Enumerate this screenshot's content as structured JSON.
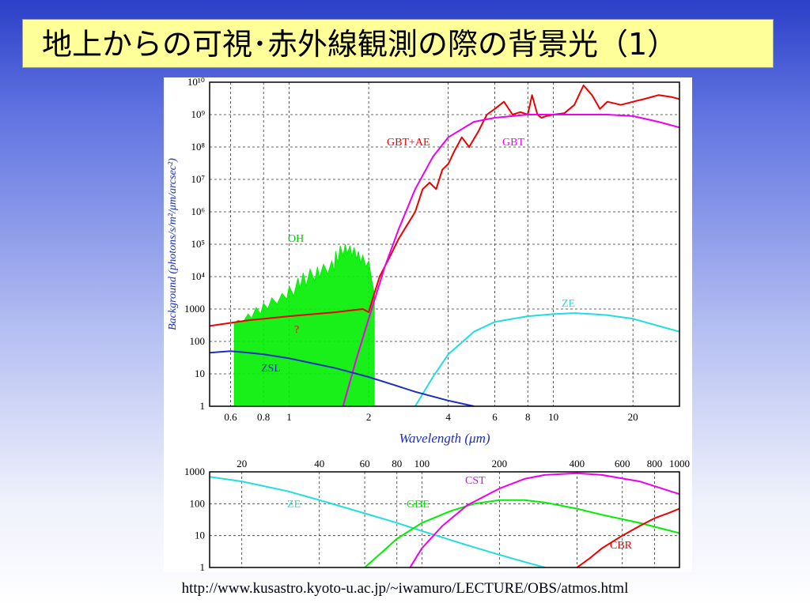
{
  "slide": {
    "title": "地上からの可視･赤外線観測の際の背景光（1）",
    "source_url": "http://www.kusastro.kyoto-u.ac.jp/~iwamuro/LECTURE/OBS/atmos.html"
  },
  "chart_data": [
    {
      "type": "line",
      "title": "",
      "xlabel": "Wavelength (μm)",
      "ylabel": "Background (photons/s/m²/μm/arcsec²)",
      "x_scale": "log",
      "y_scale": "log",
      "xlim": [
        0.5,
        30
      ],
      "ylim": [
        1,
        10000000000
      ],
      "grid": true,
      "x_ticks": [
        {
          "value": 0.6,
          "label": "0.6"
        },
        {
          "value": 0.8,
          "label": "0.8"
        },
        {
          "value": 1,
          "label": "1"
        },
        {
          "value": 2,
          "label": "2"
        },
        {
          "value": 4,
          "label": "4"
        },
        {
          "value": 6,
          "label": "6"
        },
        {
          "value": 8,
          "label": "8"
        },
        {
          "value": 10,
          "label": "10"
        },
        {
          "value": 20,
          "label": "20"
        }
      ],
      "y_ticks": [
        {
          "value": 1,
          "label": "1"
        },
        {
          "value": 10,
          "label": "10"
        },
        {
          "value": 100,
          "label": "100"
        },
        {
          "value": 1000,
          "label": "1000"
        },
        {
          "value": 10000,
          "label": "10⁴"
        },
        {
          "value": 100000,
          "label": "10⁵"
        },
        {
          "value": 1000000,
          "label": "10⁶"
        },
        {
          "value": 10000000,
          "label": "10⁷"
        },
        {
          "value": 100000000,
          "label": "10⁸"
        },
        {
          "value": 1000000000,
          "label": "10⁹"
        },
        {
          "value": 10000000000,
          "label": "10¹⁰"
        }
      ],
      "series": [
        {
          "name": "OH",
          "color": "#00ee00",
          "fill": true,
          "x": [
            0.62,
            0.64,
            0.67,
            0.7,
            0.72,
            0.75,
            0.78,
            0.8,
            0.83,
            0.86,
            0.9,
            0.94,
            0.98,
            1.0,
            1.04,
            1.08,
            1.1,
            1.13,
            1.16,
            1.2,
            1.25,
            1.28,
            1.3,
            1.35,
            1.4,
            1.45,
            1.48,
            1.5,
            1.53,
            1.56,
            1.6,
            1.63,
            1.66,
            1.7,
            1.73,
            1.76,
            1.8,
            1.83,
            1.86,
            1.9,
            1.95,
            2.0,
            2.05,
            2.1
          ],
          "y": [
            350,
            450,
            400,
            700,
            500,
            1100,
            700,
            1500,
            1000,
            2200,
            1400,
            3000,
            2000,
            5000,
            2500,
            9000,
            4000,
            13000,
            5000,
            17000,
            7000,
            20000,
            9000,
            24000,
            12000,
            30000,
            14000,
            60000,
            25000,
            90000,
            40000,
            100000,
            50000,
            90000,
            40000,
            80000,
            35000,
            60000,
            25000,
            45000,
            20000,
            30000,
            8000,
            3000
          ]
        },
        {
          "name": "GBT+AE",
          "color": "#ee0000",
          "x": [
            0.5,
            0.7,
            1.0,
            1.5,
            1.9,
            2.0,
            2.1,
            2.2,
            2.4,
            2.6,
            2.8,
            3.0,
            3.2,
            3.4,
            3.6,
            3.8,
            4.0,
            4.2,
            4.5,
            4.8,
            5.2,
            5.6,
            6.0,
            6.5,
            7.0,
            7.5,
            8.0,
            8.3,
            8.7,
            9.0,
            9.4,
            10.0,
            11.0,
            12.0,
            13.0,
            14.0,
            15.0,
            16.0,
            18.0,
            20.0,
            22.0,
            25.0,
            28.0,
            30.0
          ],
          "y": [
            300,
            450,
            600,
            800,
            1000,
            800,
            3000,
            10000,
            40000,
            150000,
            400000,
            1000000,
            5000000,
            8000000,
            5000000,
            20000000,
            30000000,
            70000000,
            200000000,
            100000000,
            300000000,
            1000000000,
            1500000000,
            2500000000,
            1000000000,
            1200000000,
            1000000000,
            4000000000,
            1000000000,
            800000000,
            900000000,
            1000000000,
            1100000000,
            2000000000,
            8000000000,
            4000000000,
            1500000000,
            2500000000,
            2000000000,
            2500000000,
            3000000000,
            4000000000,
            3500000000,
            3000000000
          ]
        },
        {
          "name": "GBT",
          "color": "#ee00ee",
          "x": [
            1.6,
            1.8,
            2.0,
            2.3,
            2.6,
            3.0,
            3.5,
            4.0,
            5.0,
            6.0,
            8.0,
            10.0,
            12.0,
            14.0,
            16.0,
            20.0,
            25.0,
            30.0
          ],
          "y": [
            1,
            30,
            500,
            20000,
            300000,
            5000000,
            50000000,
            200000000,
            600000000,
            800000000,
            1000000000,
            1000000000,
            1000000000,
            1000000000,
            1000000000,
            900000000,
            600000000,
            400000000
          ]
        },
        {
          "name": "ZE",
          "color": "#22dddd",
          "x": [
            3.0,
            3.5,
            4.0,
            5.0,
            6.0,
            8.0,
            10.0,
            12.0,
            14.0,
            16.0,
            20.0,
            25.0,
            30.0
          ],
          "y": [
            1,
            8,
            40,
            200,
            400,
            600,
            700,
            750,
            700,
            650,
            500,
            300,
            200
          ]
        },
        {
          "name": "ZSL",
          "color": "#1a2ec0",
          "x": [
            0.5,
            0.6,
            0.7,
            0.8,
            1.0,
            1.2,
            1.5,
            2.0,
            2.5,
            3.0,
            3.5,
            4.0,
            5.0
          ],
          "y": [
            45,
            50,
            45,
            40,
            30,
            22,
            15,
            8,
            4.5,
            2.8,
            2,
            1.5,
            1
          ]
        }
      ],
      "annotations": [
        {
          "text": "OH",
          "color": "#00cc00"
        },
        {
          "text": "GBT+AE",
          "color": "#ee0000"
        },
        {
          "text": "GBT",
          "color": "#ee00ee"
        },
        {
          "text": "?",
          "color": "#ee0000"
        },
        {
          "text": "ZE",
          "color": "#22dddd"
        },
        {
          "text": "ZSL",
          "color": "#1a2ec0"
        }
      ]
    },
    {
      "type": "line",
      "title": "",
      "x_scale": "log",
      "y_scale": "log",
      "xlim": [
        15,
        1000
      ],
      "ylim": [
        1,
        1000
      ],
      "grid": true,
      "x_ticks": [
        {
          "value": 20,
          "label": "20"
        },
        {
          "value": 40,
          "label": "40"
        },
        {
          "value": 60,
          "label": "60"
        },
        {
          "value": 80,
          "label": "80"
        },
        {
          "value": 100,
          "label": "100"
        },
        {
          "value": 200,
          "label": "200"
        },
        {
          "value": 400,
          "label": "400"
        },
        {
          "value": 600,
          "label": "600"
        },
        {
          "value": 800,
          "label": "800"
        },
        {
          "value": 1000,
          "label": "1000"
        }
      ],
      "y_ticks": [
        {
          "value": 1,
          "label": "1"
        },
        {
          "value": 10,
          "label": "10"
        },
        {
          "value": 100,
          "label": "100"
        },
        {
          "value": 1000,
          "label": "1000"
        }
      ],
      "series": [
        {
          "name": "ZE",
          "color": "#22dddd",
          "x": [
            15,
            20,
            30,
            40,
            60,
            80,
            100,
            150,
            200,
            250,
            300
          ],
          "y": [
            700,
            500,
            250,
            130,
            50,
            25,
            14,
            5,
            2.5,
            1.5,
            1
          ]
        },
        {
          "name": "GDE",
          "color": "#00ee00",
          "x": [
            60,
            70,
            80,
            100,
            130,
            160,
            200,
            250,
            300,
            400,
            500,
            700,
            1000
          ],
          "y": [
            1,
            3,
            8,
            25,
            60,
            100,
            130,
            130,
            110,
            70,
            45,
            25,
            12
          ]
        },
        {
          "name": "CST",
          "color": "#ee00ee",
          "x": [
            90,
            100,
            120,
            150,
            200,
            250,
            300,
            400,
            500,
            700,
            1000
          ],
          "y": [
            1,
            4,
            20,
            90,
            300,
            600,
            800,
            900,
            800,
            500,
            200
          ]
        },
        {
          "name": "CBR",
          "color": "#ee0000",
          "x": [
            400,
            450,
            500,
            600,
            700,
            800,
            900,
            1000
          ],
          "y": [
            1,
            2,
            4,
            10,
            20,
            35,
            50,
            70
          ]
        }
      ],
      "annotations": [
        {
          "text": "ZE",
          "color": "#22dddd"
        },
        {
          "text": "GDE",
          "color": "#00ee00"
        },
        {
          "text": "CST",
          "color": "#ee00ee"
        },
        {
          "text": "CBR",
          "color": "#ee0000"
        }
      ]
    }
  ]
}
